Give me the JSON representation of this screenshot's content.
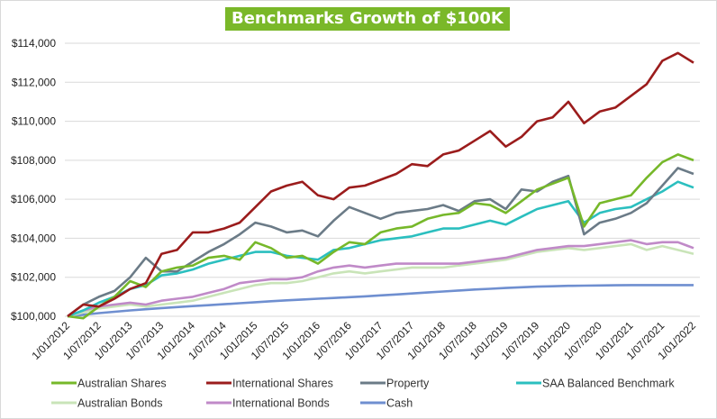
{
  "chart_data": {
    "type": "line",
    "title": "Benchmarks Growth of $100K",
    "xlabel": "",
    "ylabel": "",
    "ylim": [
      100000,
      114000
    ],
    "yticks": [
      "$100,000",
      "$102,000",
      "$104,000",
      "$106,000",
      "$108,000",
      "$110,000",
      "$112,000",
      "$114,000"
    ],
    "ytick_values": [
      100000,
      102000,
      104000,
      106000,
      108000,
      110000,
      112000,
      114000
    ],
    "xtick_labels": [
      "1/01/2012",
      "1/07/2012",
      "1/01/2013",
      "1/07/2013",
      "1/01/2014",
      "1/07/2014",
      "1/01/2015",
      "1/07/2015",
      "1/01/2016",
      "1/07/2016",
      "1/01/2017",
      "1/07/2017",
      "1/01/2018",
      "1/07/2018",
      "1/01/2019",
      "1/07/2019",
      "1/01/2020",
      "1/07/2020",
      "1/01/2021",
      "1/07/2021",
      "1/01/2022"
    ],
    "x_frequency": "quarterly from 1/01/2012 to 1/01/2022",
    "grid": "horizontal",
    "legend_placement": "bottom",
    "series": [
      {
        "name": "Australian Shares",
        "color": "#76b82a",
        "values": [
          100000,
          99900,
          100500,
          101000,
          101800,
          101500,
          102300,
          102500,
          102600,
          103000,
          103100,
          102900,
          103800,
          103500,
          103000,
          103100,
          102700,
          103300,
          103800,
          103700,
          104300,
          104500,
          104600,
          105000,
          105200,
          105300,
          105800,
          105700,
          105300,
          105900,
          106500,
          106800,
          107100,
          104600,
          105800,
          106000,
          106200,
          107100,
          107900,
          108300,
          108000
        ]
      },
      {
        "name": "International Shares",
        "color": "#9b1c1c",
        "values": [
          100000,
          100600,
          100500,
          100900,
          101400,
          101700,
          103200,
          103400,
          104300,
          104300,
          104500,
          104800,
          105600,
          106400,
          106700,
          106900,
          106200,
          106000,
          106600,
          106700,
          107000,
          107300,
          107800,
          107700,
          108300,
          108500,
          109000,
          109500,
          108700,
          109200,
          110000,
          110200,
          111000,
          109900,
          110500,
          110700,
          111300,
          111900,
          113100,
          113500,
          113000
        ]
      },
      {
        "name": "Property",
        "color": "#6b7b87",
        "values": [
          100000,
          100600,
          101000,
          101300,
          102000,
          103000,
          102300,
          102300,
          102800,
          103300,
          103700,
          104200,
          104800,
          104600,
          104300,
          104400,
          104100,
          104900,
          105600,
          105300,
          105000,
          105300,
          105400,
          105500,
          105700,
          105400,
          105900,
          106000,
          105500,
          106500,
          106400,
          106900,
          107200,
          104200,
          104800,
          105000,
          105300,
          105800,
          106700,
          107600,
          107300
        ]
      },
      {
        "name": "SAA Balanced Benchmark",
        "color": "#2bbfbf",
        "values": [
          100000,
          100300,
          100700,
          101000,
          101400,
          101600,
          102100,
          102200,
          102400,
          102700,
          102900,
          103100,
          103300,
          103300,
          103100,
          103000,
          102900,
          103400,
          103500,
          103700,
          103900,
          104000,
          104100,
          104300,
          104500,
          104500,
          104700,
          104900,
          104700,
          105100,
          105500,
          105700,
          105900,
          104800,
          105300,
          105500,
          105600,
          106000,
          106400,
          106900,
          106600
        ]
      },
      {
        "name": "Australian Bonds",
        "color": "#c9e4b8",
        "values": [
          100000,
          100200,
          100400,
          100500,
          100600,
          100500,
          100600,
          100700,
          100800,
          101000,
          101200,
          101400,
          101600,
          101700,
          101700,
          101800,
          102000,
          102200,
          102300,
          102200,
          102300,
          102400,
          102500,
          102500,
          102500,
          102600,
          102700,
          102800,
          102900,
          103100,
          103300,
          103400,
          103500,
          103400,
          103500,
          103600,
          103700,
          103400,
          103600,
          103400,
          103200
        ]
      },
      {
        "name": "International Bonds",
        "color": "#c08ac8",
        "values": [
          100000,
          100300,
          100500,
          100600,
          100700,
          100600,
          100800,
          100900,
          101000,
          101200,
          101400,
          101700,
          101800,
          101900,
          101900,
          102000,
          102300,
          102500,
          102600,
          102500,
          102600,
          102700,
          102700,
          102700,
          102700,
          102700,
          102800,
          102900,
          103000,
          103200,
          103400,
          103500,
          103600,
          103600,
          103700,
          103800,
          103900,
          103700,
          103800,
          103800,
          103500
        ]
      },
      {
        "name": "Cash",
        "color": "#6f8fd0",
        "values": [
          100000,
          100080,
          100160,
          100230,
          100300,
          100360,
          100420,
          100470,
          100520,
          100570,
          100620,
          100670,
          100720,
          100770,
          100820,
          100860,
          100900,
          100940,
          100980,
          101020,
          101070,
          101120,
          101170,
          101220,
          101270,
          101320,
          101370,
          101410,
          101450,
          101490,
          101520,
          101540,
          101560,
          101570,
          101580,
          101590,
          101600,
          101600,
          101600,
          101600,
          101600
        ]
      }
    ]
  }
}
